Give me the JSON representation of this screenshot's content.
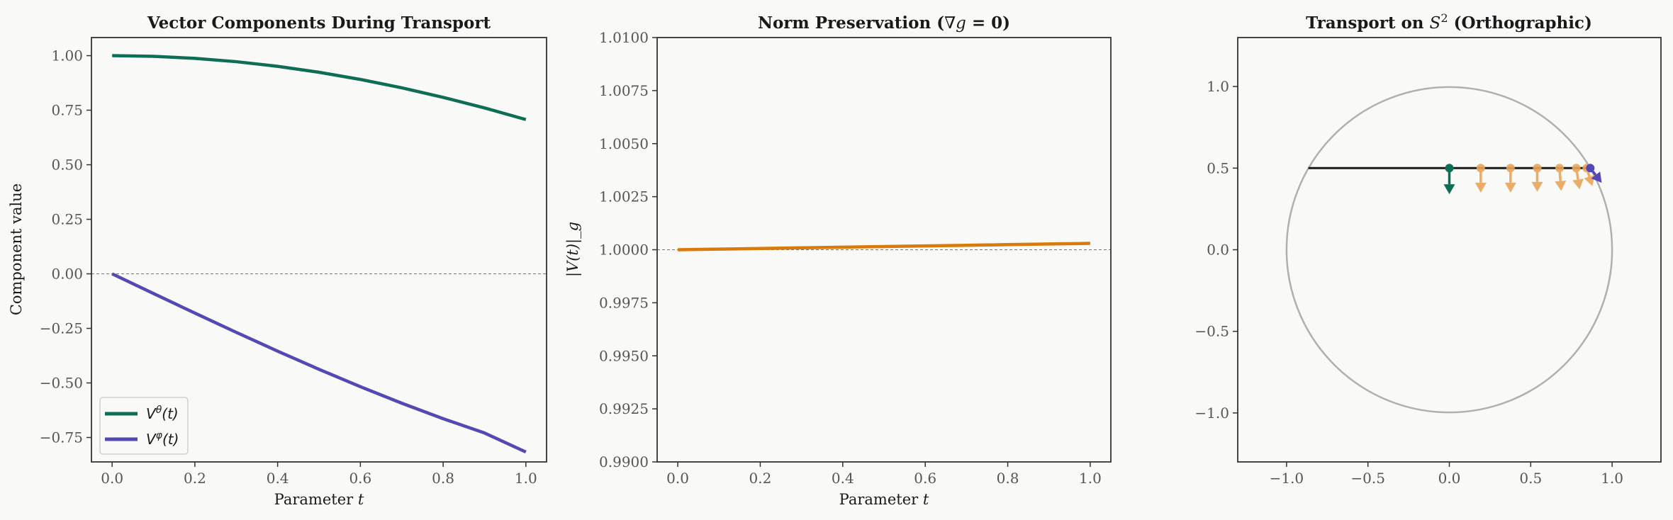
{
  "chart_data": [
    {
      "type": "line",
      "title": "Vector Components During Transport",
      "xlabel": "Parameter t",
      "ylabel": "Component value",
      "xlim": [
        -0.05,
        1.05
      ],
      "ylim": [
        -0.862,
        1.083
      ],
      "xticks": [
        0.0,
        0.2,
        0.4,
        0.6,
        0.8,
        1.0
      ],
      "yticks": [
        -0.75,
        -0.5,
        -0.25,
        0.0,
        0.25,
        0.5,
        0.75,
        1.0
      ],
      "reference_line": {
        "y": 0.0,
        "style": "dashed",
        "color": "#777777"
      },
      "x": [
        0,
        0.1,
        0.2,
        0.3,
        0.4,
        0.5,
        0.6,
        0.7,
        0.8,
        0.9,
        1.0
      ],
      "series": [
        {
          "name": "V^θ(t)",
          "color": "#0e6e55",
          "values": [
            1.0,
            0.9969,
            0.9877,
            0.9724,
            0.9511,
            0.9239,
            0.891,
            0.8526,
            0.809,
            0.7604,
            0.7071
          ]
        },
        {
          "name": "V^φ(t)",
          "color": "#5448b4",
          "values": [
            0.0,
            -0.0903,
            -0.18,
            -0.2682,
            -0.3543,
            -0.4375,
            -0.5173,
            -0.5929,
            -0.6638,
            -0.7294,
            -0.8165
          ]
        }
      ],
      "legend": "lower-left",
      "grid": false
    },
    {
      "type": "line",
      "title": "Norm Preservation (∇g = 0)",
      "xlabel": "Parameter t",
      "ylabel": "|V(t)|_g",
      "xlim": [
        -0.05,
        1.05
      ],
      "ylim": [
        0.99,
        1.01
      ],
      "xticks": [
        0.0,
        0.2,
        0.4,
        0.6,
        0.8,
        1.0
      ],
      "yticks": [
        0.99,
        0.9925,
        0.995,
        0.9975,
        1.0,
        1.0025,
        1.005,
        1.0075,
        1.01
      ],
      "ytick_labels": [
        "0.9900",
        "0.9925",
        "0.9950",
        "0.9975",
        "1.0000",
        "1.0025",
        "1.0050",
        "1.0075",
        "1.0100"
      ],
      "reference_line": {
        "y": 1.0,
        "style": "dashed",
        "color": "#777777"
      },
      "x": [
        0,
        0.1,
        0.2,
        0.3,
        0.4,
        0.5,
        0.6,
        0.7,
        0.8,
        0.9,
        1.0
      ],
      "series": [
        {
          "color": "#d97a0c",
          "values": [
            1.0,
            1.00003,
            1.00006,
            1.00009,
            1.00012,
            1.00015,
            1.00018,
            1.00021,
            1.00024,
            1.00027,
            1.0003
          ]
        }
      ],
      "grid": false
    },
    {
      "type": "scatter",
      "title": "Transport on S² (Orthographic)",
      "xlim": [
        -1.3,
        1.3
      ],
      "ylim": [
        -1.3,
        1.3
      ],
      "xticks": [
        -1.0,
        -0.5,
        0.0,
        0.5,
        1.0
      ],
      "yticks": [
        -1.0,
        -0.5,
        0.0,
        0.5,
        1.0
      ],
      "sphere_outline": {
        "radius": 1.0,
        "color": "#b0b0b0"
      },
      "path": {
        "x": [
          -0.866,
          0.866
        ],
        "y": [
          0.5,
          0.5
        ],
        "color": "#1a1a1a"
      },
      "vectors": [
        {
          "x": 0.0,
          "y": 0.5,
          "dx": 0.0,
          "dy": -0.16,
          "color": "#0e6e55"
        },
        {
          "x": 0.193,
          "y": 0.5,
          "dx": 0.0,
          "dy": -0.15,
          "color": "#e8a55a"
        },
        {
          "x": 0.376,
          "y": 0.5,
          "dx": 0.0,
          "dy": -0.15,
          "color": "#e8a55a"
        },
        {
          "x": 0.54,
          "y": 0.5,
          "dx": 0.0,
          "dy": -0.145,
          "color": "#e8a55a"
        },
        {
          "x": 0.677,
          "y": 0.5,
          "dx": 0.01,
          "dy": -0.14,
          "color": "#e8a55a"
        },
        {
          "x": 0.78,
          "y": 0.5,
          "dx": 0.02,
          "dy": -0.13,
          "color": "#e8a55a"
        },
        {
          "x": 0.844,
          "y": 0.5,
          "dx": 0.035,
          "dy": -0.11,
          "color": "#e8a55a"
        },
        {
          "x": 0.866,
          "y": 0.5,
          "dx": 0.07,
          "dy": -0.09,
          "color": "#5448b4"
        }
      ],
      "grid": false
    }
  ]
}
